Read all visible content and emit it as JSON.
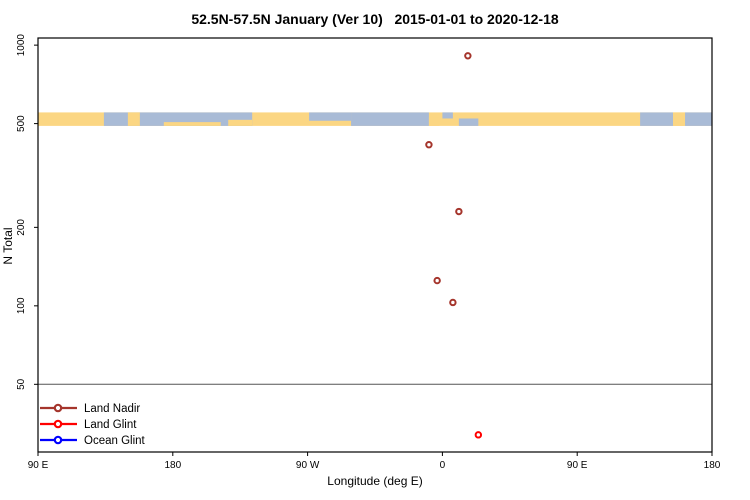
{
  "chart_data": {
    "type": "scatter",
    "title": "52.5N-57.5N January (Ver 10)   2015-01-01 to 2020-12-18",
    "xlabel": "Longitude (deg E)",
    "ylabel": "N Total",
    "y_scale": "log10",
    "ylim": [
      27.5,
      1065
    ],
    "yticks": [
      1000,
      500,
      200,
      100,
      50
    ],
    "x_axis": {
      "span_deg": 450,
      "ticks": [
        {
          "pos": 0,
          "label": "90 E"
        },
        {
          "pos": 90,
          "label": "180"
        },
        {
          "pos": 180,
          "label": "90 W"
        },
        {
          "pos": 270,
          "label": "0"
        },
        {
          "pos": 360,
          "label": "90 E"
        },
        {
          "pos": 450,
          "label": "180"
        }
      ]
    },
    "reference_line_y": 50,
    "map_band": {
      "n_top": 552,
      "n_bottom": 490,
      "base_color": "land",
      "segments": [
        {
          "from": 44,
          "to": 143,
          "color": "ocean"
        },
        {
          "from": 60,
          "to": 68,
          "color": "land"
        },
        {
          "from": 84,
          "to": 122,
          "color": "land",
          "top": 0.72,
          "height": 0.28
        },
        {
          "from": 127,
          "to": 143,
          "color": "land",
          "top": 0.55,
          "height": 0.45
        },
        {
          "from": 181,
          "to": 209,
          "color": "ocean",
          "top": 0.0,
          "height": 0.62
        },
        {
          "from": 209,
          "to": 261,
          "color": "ocean"
        },
        {
          "from": 261,
          "to": 268,
          "color": "land",
          "top": 0.35,
          "height": 0.65
        },
        {
          "from": 270,
          "to": 277,
          "color": "ocean",
          "top": 0.0,
          "height": 0.45
        },
        {
          "from": 281,
          "to": 294,
          "color": "ocean",
          "top": 0.45,
          "height": 0.55
        },
        {
          "from": 402,
          "to": 424,
          "color": "ocean"
        },
        {
          "from": 424,
          "to": 432,
          "color": "land"
        },
        {
          "from": 432,
          "to": 450,
          "color": "ocean"
        }
      ]
    },
    "series": [
      {
        "name": "Land Nadir",
        "key": "land_nadir",
        "points": [
          {
            "lon": 17,
            "n": 910
          },
          {
            "lon": -9,
            "n": 415
          },
          {
            "lon": 11,
            "n": 230
          },
          {
            "lon": -3.5,
            "n": 125
          },
          {
            "lon": 7,
            "n": 103
          }
        ]
      },
      {
        "name": "Land Glint",
        "key": "land_glint",
        "points": [
          {
            "lon": 24,
            "n": 32
          }
        ]
      },
      {
        "name": "Ocean Glint",
        "key": "ocean_glint",
        "points": []
      }
    ],
    "legend": {
      "position": "bottom-left",
      "entries": [
        "Land Nadir",
        "Land Glint",
        "Ocean Glint"
      ]
    },
    "colors": {
      "land_nadir": "#A5352C",
      "land_glint": "#FF0000",
      "ocean_glint": "#0000FF",
      "land": "#FBD683",
      "ocean": "#A9BBD6",
      "reference_line": "#555555",
      "axis": "#000000",
      "text": "#000000",
      "background": "#FFFFFF"
    }
  }
}
